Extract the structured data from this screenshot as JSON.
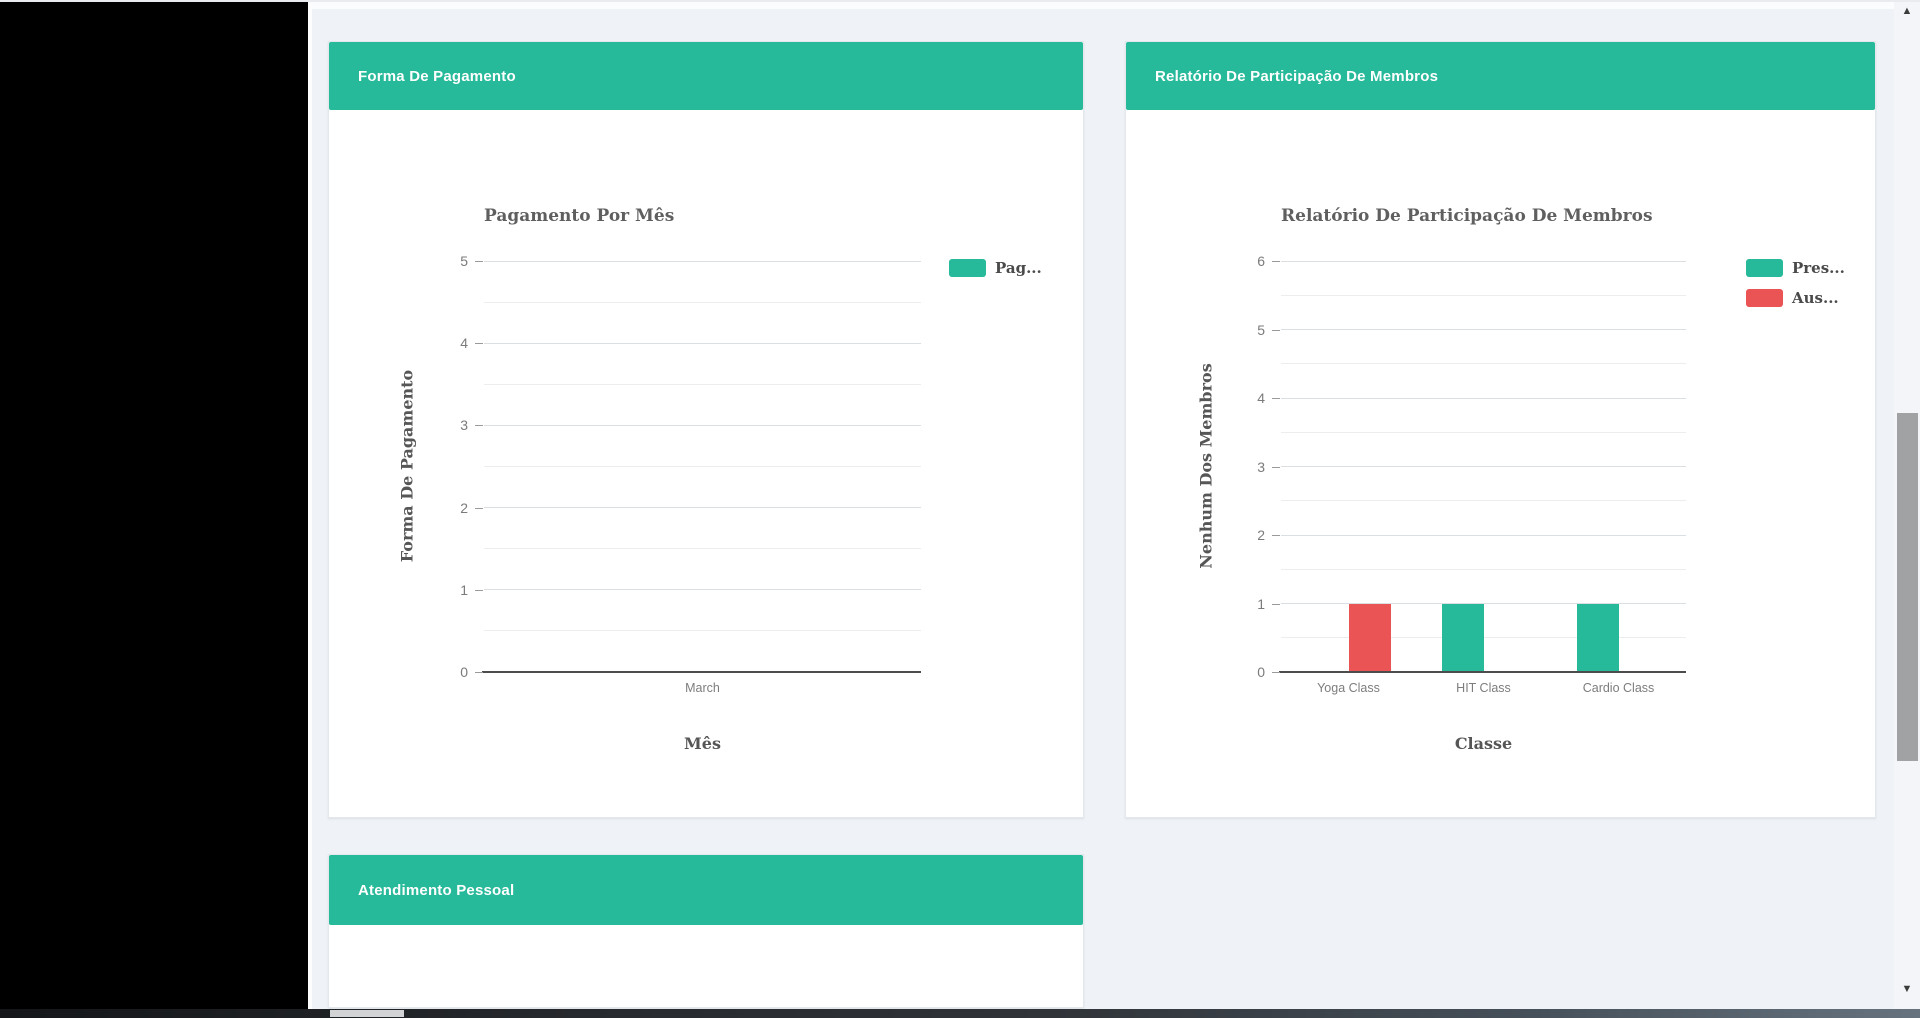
{
  "page": {
    "background": "#eff2f6",
    "sidebar_color": "#000000"
  },
  "theme": {
    "header_green": "#26b99a",
    "bar_teal": "#26b99a",
    "bar_red": "#ea5455",
    "axis_line": "#4c4c4c",
    "grid_major": "#dcdfe2",
    "grid_minor": "#ecedef"
  },
  "panels": {
    "payment": {
      "title": "Forma De Pagamento"
    },
    "participation": {
      "title": "Relatório De Participação De Membros"
    },
    "personal": {
      "title": "Atendimento Pessoal"
    }
  },
  "chart_data": [
    {
      "type": "bar",
      "title": "Pagamento Por Mês",
      "categories": [
        "March"
      ],
      "series": [
        {
          "label": "Pag...",
          "color": "#26b99a",
          "values": [
            0
          ]
        }
      ],
      "xlabel": "Mês",
      "ylabel": "Forma De Pagamento",
      "ylim": [
        0,
        5
      ],
      "ytick_step": 1,
      "minor_grid_step": 0.5,
      "grid": true,
      "legend_position": "right-top"
    },
    {
      "type": "bar",
      "title": "Relatório De Participação De Membros",
      "categories": [
        "Yoga Class",
        "HIT Class",
        "Cardio Class"
      ],
      "series": [
        {
          "label": "Pres...",
          "color": "#26b99a",
          "values": [
            0,
            1,
            1
          ]
        },
        {
          "label": "Aus...",
          "color": "#ea5455",
          "values": [
            1,
            0,
            0
          ]
        }
      ],
      "xlabel": "Classe",
      "ylabel": "Nenhum Dos Membros",
      "ylim": [
        0,
        6
      ],
      "ytick_step": 1,
      "minor_grid_step": 0.5,
      "grid": true,
      "legend_position": "right-top"
    }
  ]
}
